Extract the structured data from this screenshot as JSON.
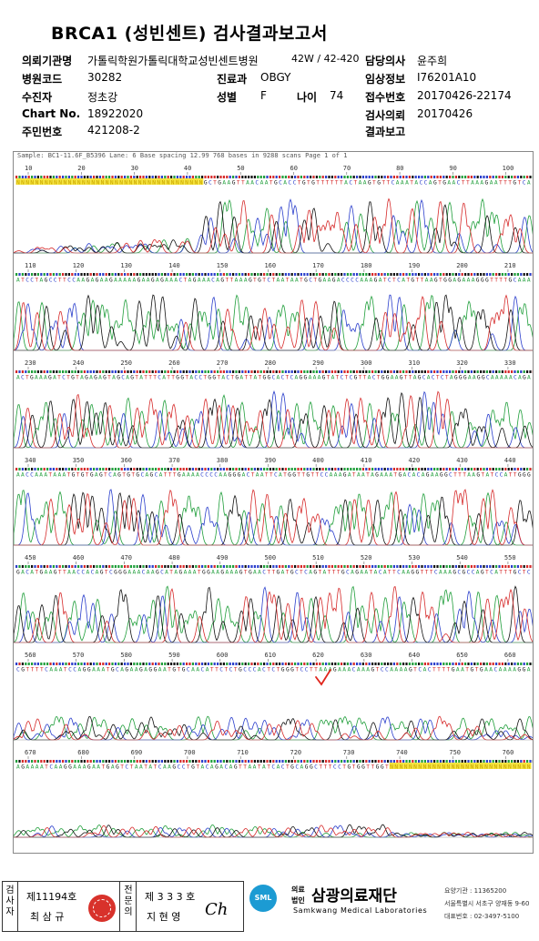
{
  "title": "BRCA1 (성빈센트) 검사결과보고서",
  "header": {
    "row1": {
      "l1": "의뢰기관명",
      "v1": "가톨릭학원가톨릭대학교성빈센트병원",
      "suffix": "42W / 42-420",
      "l2": "담당의사",
      "v2": "윤주희"
    },
    "row2": {
      "l1": "병원코드",
      "v1": "30282",
      "l2": "진료과",
      "v2": "OBGY",
      "l3": "임상정보",
      "v3": "I76201A10"
    },
    "row3": {
      "l1": "수진자",
      "v1": "정초강",
      "l2": "성별",
      "v2": "F",
      "l2b": "나이",
      "v2b": "74",
      "l3": "접수번호",
      "v3": "20170426-22174"
    },
    "row4": {
      "l1": "Chart No.",
      "v1": "18922020",
      "l3": "검사의뢰",
      "v3": "20170426"
    },
    "row5": {
      "l1": "주민번호",
      "v1": "421208-2",
      "l3": "결과보고",
      "v3": ""
    }
  },
  "trace": {
    "top_line": "Sample: BC1-11.6F_B5396          Lane: 6   Base spacing 12.99          768 bases in 9288 scans                 Page 1 of 1",
    "rows": [
      {
        "ticks": [
          "10",
          "20",
          "30",
          "40",
          "50",
          "60",
          "70",
          "80",
          "90",
          "100"
        ],
        "seq": "NNNNNNNNNNNNNNNNNNNNNNNNNNNNNNNNNNNNNNNNGCTGAAGTTAACAATGCACCTGTGTTTTTTACTAAGTGTTCAAATACCAGTGAACTTAAAGAATTTGTCA"
      },
      {
        "ticks": [
          "110",
          "120",
          "130",
          "140",
          "150",
          "160",
          "170",
          "180",
          "190",
          "200",
          "210"
        ],
        "seq": "ATCCTAGCCTTCCAAGAGAAGAAAAAGAAGAGAAACTAGAAACAGTTAAAGTGTCTAATAATGCTGAAGACCCCAAAGATCTCATGTTAAGTGGAGAAAGGGTTTTGCAAA"
      },
      {
        "ticks": [
          "230",
          "240",
          "250",
          "260",
          "270",
          "280",
          "290",
          "300",
          "310",
          "320",
          "330"
        ],
        "seq": "ACTGAAAGATCTGTAGAGAGTAGCAGTATTTCATTGGTACCTGGTACTGATTATGGCACTCAGGAAAGTATCTCGTTACTGGAAGTTAGCACTCTAGGGAAGGCAAAAACAGA"
      },
      {
        "ticks": [
          "340",
          "350",
          "360",
          "370",
          "380",
          "390",
          "400",
          "410",
          "420",
          "430",
          "440"
        ],
        "seq": "AACCAAATAAATGTGTGAGTCAGTGTGCAGCATTTGAAAACCCCAAGGGACTAATTCATGGTTGTTCCAAAGATAATAGAAATGACACAGAAGGCTTTAAGTATCCATTGGG"
      },
      {
        "ticks": [
          "450",
          "460",
          "470",
          "480",
          "490",
          "500",
          "510",
          "520",
          "530",
          "540",
          "550"
        ],
        "seq": "GACATGAAGTTAACCACAGTCGGGAAACAAGCATAGAAATGGAAGAAAGTGAACTTGATGCTCAGTATTTGCAGAATACATTCAAGGTTTCAAAGCGCCAGTCATTTGCTC"
      },
      {
        "ticks": [
          "560",
          "570",
          "580",
          "590",
          "600",
          "610",
          "620",
          "630",
          "640",
          "650",
          "660"
        ],
        "seq": "CGTTTTCAAATCCAGGAAATGCAGAAGAGGAATGTGCAACATTCTCTGCCCACTCTGGGTCCTTAAAGAAACAAAGTCCAAAAGTCACTTTTGAATGTGAACAAAAGGA"
      },
      {
        "ticks": [
          "670",
          "680",
          "690",
          "700",
          "710",
          "720",
          "730",
          "740",
          "750",
          "760"
        ],
        "seq": "AGAAAATCAAGGAAAGAATGAGTCTAATATCAAGCCTGTACAGACAGTTAATATCACTGCAGGCTTTCCTGTGGTTGGTNNNNNNNNNNNNNNNNNNNNNNNNNNNNNN"
      }
    ],
    "colors": {
      "A": "#1f9e3a",
      "C": "#2b3fcc",
      "G": "#111111",
      "T": "#d62a2a",
      "N": "#c8a400",
      "highlight": "#f5e33a",
      "mark": "#e0241b"
    }
  },
  "footer": {
    "box1_label": "검사자",
    "box1_line1": "제11194호",
    "box1_line2": "최 삼 규",
    "box2_label": "전문의",
    "box2_line1": "제 3 3 3 호",
    "box2_line2": "지 현 영",
    "signature": "Ch",
    "org_prefix_top": "의료",
    "org_prefix_bottom": "법인",
    "org_name_ko": "삼광의료재단",
    "org_name_en": "Samkwang Medical Laboratories",
    "logo_text": "SML",
    "reg_no": "요양기관 : 11365200",
    "address": "서울특별시 서초구 양재동 9-60",
    "phone": "대표번호 : 02-3497-5100"
  }
}
